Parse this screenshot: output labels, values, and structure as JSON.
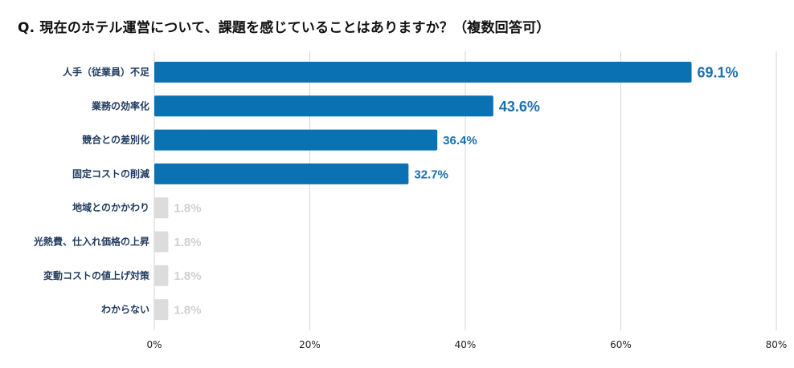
{
  "chart_data": {
    "type": "bar",
    "orientation": "horizontal",
    "title": "Q. 現在のホテル運営について、課題を感じていることはありますか？（複数回答可）",
    "categories": [
      "人手（従業員）不足",
      "業務の効率化",
      "競合との差別化",
      "固定コストの削減",
      "地域とのかかわり",
      "光熱費、仕入れ価格の上昇",
      "変動コストの値上げ対策",
      "わからない"
    ],
    "values": [
      69.1,
      43.6,
      36.4,
      32.7,
      1.8,
      1.8,
      1.8,
      1.8
    ],
    "value_labels": [
      "69.1%",
      "43.6%",
      "36.4%",
      "32.7%",
      "1.8%",
      "1.8%",
      "1.8%",
      "1.8%"
    ],
    "xlim": [
      0,
      80
    ],
    "x_ticks": [
      0,
      20,
      40,
      60,
      80
    ],
    "x_tick_labels": [
      "0%",
      "20%",
      "40%",
      "60%",
      "80%"
    ],
    "grid": true,
    "legend": "none",
    "colors": {
      "highlight": "#0a72b3",
      "muted": "#dcdcdc",
      "highlight_text": "#1a6fb0",
      "muted_text": "#d0d0d0",
      "grid": "#d4d4d4",
      "category_text": "#1f3a5f"
    }
  }
}
